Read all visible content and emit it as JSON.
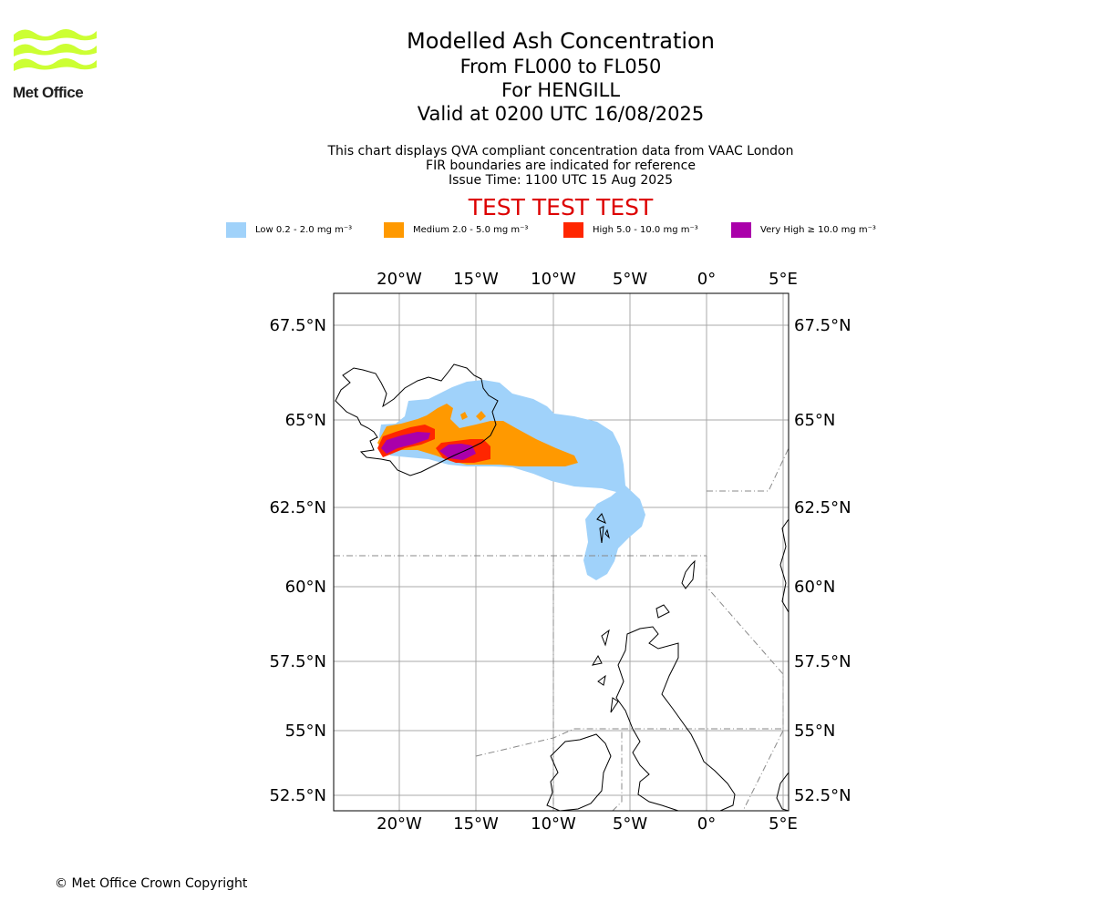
{
  "brand": {
    "name": "Met Office"
  },
  "header": {
    "title": "Modelled Ash Concentration",
    "levels": "From FL000 to FL050",
    "volcano": "For HENGILL",
    "valid": "Valid at 0200 UTC 16/08/2025"
  },
  "info": {
    "line1": "This chart displays QVA compliant concentration data from VAAC London",
    "line2": "FIR boundaries are indicated for reference",
    "line3": "Issue Time: 1100 UTC 15 Aug 2025"
  },
  "test_banner": "TEST TEST TEST",
  "legend": [
    {
      "label": "Low 0.2 - 2.0 mg m⁻³",
      "color": "#a0d2fa"
    },
    {
      "label": "Medium 2.0 - 5.0 mg m⁻³",
      "color": "#ff9900"
    },
    {
      "label": "High 5.0 - 10.0 mg m⁻³",
      "color": "#ff2600"
    },
    {
      "label": "Very High ≥ 10.0 mg m⁻³",
      "color": "#aa00aa"
    }
  ],
  "map": {
    "lon_ticks": [
      "20°W",
      "15°W",
      "10°W",
      "5°W",
      "0°",
      "5°E"
    ],
    "lat_ticks": [
      "67.5°N",
      "65°N",
      "62.5°N",
      "60°N",
      "57.5°N",
      "55°N",
      "52.5°N"
    ]
  },
  "footer": {
    "copyright": "© Met Office Crown Copyright"
  }
}
